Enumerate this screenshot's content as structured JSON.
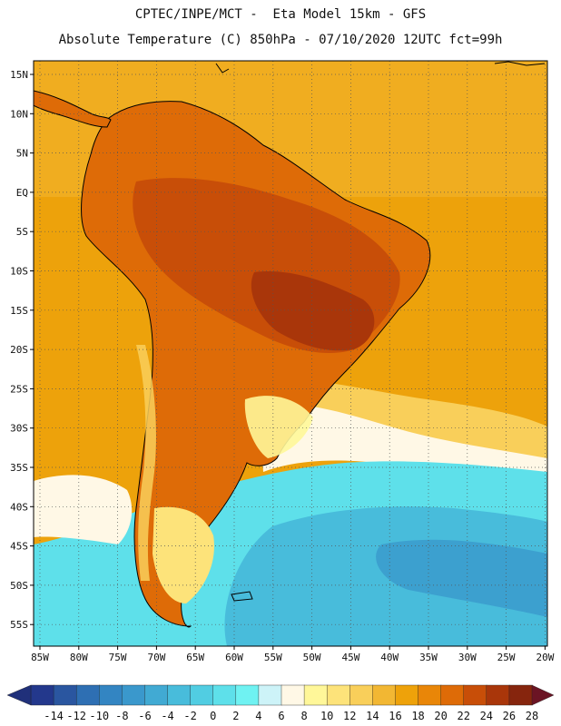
{
  "header": {
    "line1": "CPTEC/INPE/MCT -  Eta Model 15km - GFS",
    "line2": "Absolute Temperature (C) 850hPa - 07/10/2020 12UTC fct=99h"
  },
  "axes": {
    "lon_labels": [
      "85W",
      "80W",
      "75W",
      "70W",
      "65W",
      "60W",
      "55W",
      "50W",
      "45W",
      "40W",
      "35W",
      "30W",
      "25W",
      "20W"
    ],
    "lat_labels": [
      "15N",
      "10N",
      "5N",
      "EQ",
      "5S",
      "10S",
      "15S",
      "20S",
      "25S",
      "30S",
      "35S",
      "40S",
      "45S",
      "50S",
      "55S"
    ]
  },
  "colorbar": {
    "labels": [
      "-14",
      "-12",
      "-10",
      "-8",
      "-6",
      "-4",
      "-2",
      "0",
      "2",
      "4",
      "6",
      "8",
      "10",
      "12",
      "14",
      "16",
      "18",
      "20",
      "22",
      "24",
      "26",
      "28"
    ],
    "colors": [
      "#23388c",
      "#2a56a0",
      "#2e6fb3",
      "#3385c2",
      "#3a98cc",
      "#41aad3",
      "#48bcdb",
      "#51cde2",
      "#5ee0ea",
      "#6ff2f2",
      "#cdf3f8",
      "#fff8e6",
      "#fff799",
      "#fde37a",
      "#f9cf5a",
      "#f2b733",
      "#eea20a",
      "#e98608",
      "#de6b07",
      "#c84e08",
      "#a9360a",
      "#86250d"
    ],
    "under_color": "#20307a",
    "over_color": "#6b1424"
  },
  "colors": {
    "ocean_warm": "#eda20b",
    "land_hot": "#c8560a",
    "ocean_cold": "#41aad3",
    "coastline": "#000000"
  }
}
